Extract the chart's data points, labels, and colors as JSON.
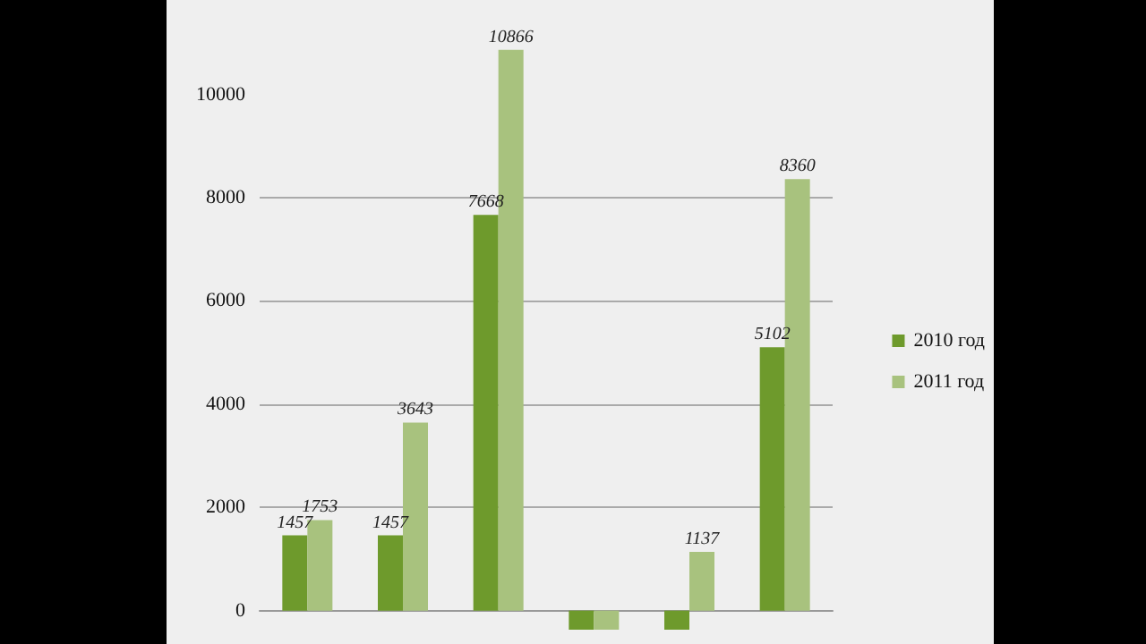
{
  "chart_data": {
    "type": "bar",
    "categories": [
      null,
      null,
      null,
      null,
      null,
      null
    ],
    "series": [
      {
        "name": "2010 год",
        "color": "#6e9a2c",
        "values": [
          1457,
          1457,
          7668,
          -370,
          -370,
          5102
        ],
        "value_labels": [
          "1457",
          "1457",
          "7668",
          null,
          null,
          "5102"
        ]
      },
      {
        "name": "2011 год",
        "color": "#a8c27e",
        "values": [
          1753,
          3643,
          10866,
          -370,
          1137,
          8360
        ],
        "value_labels": [
          "1753",
          "3643",
          "10866",
          null,
          "1137",
          "8360"
        ]
      }
    ],
    "ylim": [
      -370,
      11830
    ],
    "yticks": [
      0,
      2000,
      4000,
      6000,
      8000,
      10000
    ],
    "grid": "y",
    "legend": "right"
  }
}
